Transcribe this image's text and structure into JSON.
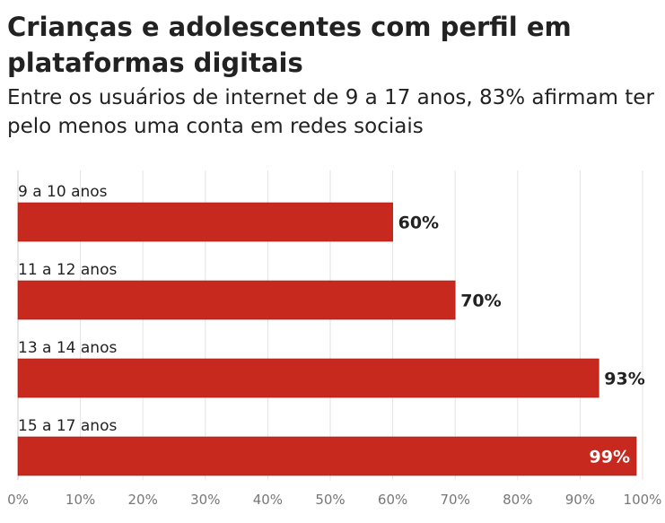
{
  "header": {
    "title": "Crianças e adolescentes com perfil em plataformas digitais",
    "subtitle": "Entre os usuários de internet de 9 a 17 anos, 83% afirmam ter pelo menos uma conta em redes sociais"
  },
  "chart_data": {
    "type": "bar",
    "orientation": "horizontal",
    "categories": [
      "9 a 10 anos",
      "11 a 12 anos",
      "13 a 14 anos",
      "15 a 17 anos"
    ],
    "values": [
      60,
      70,
      93,
      99
    ],
    "value_labels": [
      "60%",
      "70%",
      "93%",
      "99%"
    ],
    "xlim": [
      0,
      100
    ],
    "xticks": [
      "0%",
      "10%",
      "20%",
      "30%",
      "40%",
      "50%",
      "60%",
      "70%",
      "80%",
      "90%",
      "100%"
    ],
    "grid": true,
    "bar_color": "#c8291f"
  }
}
